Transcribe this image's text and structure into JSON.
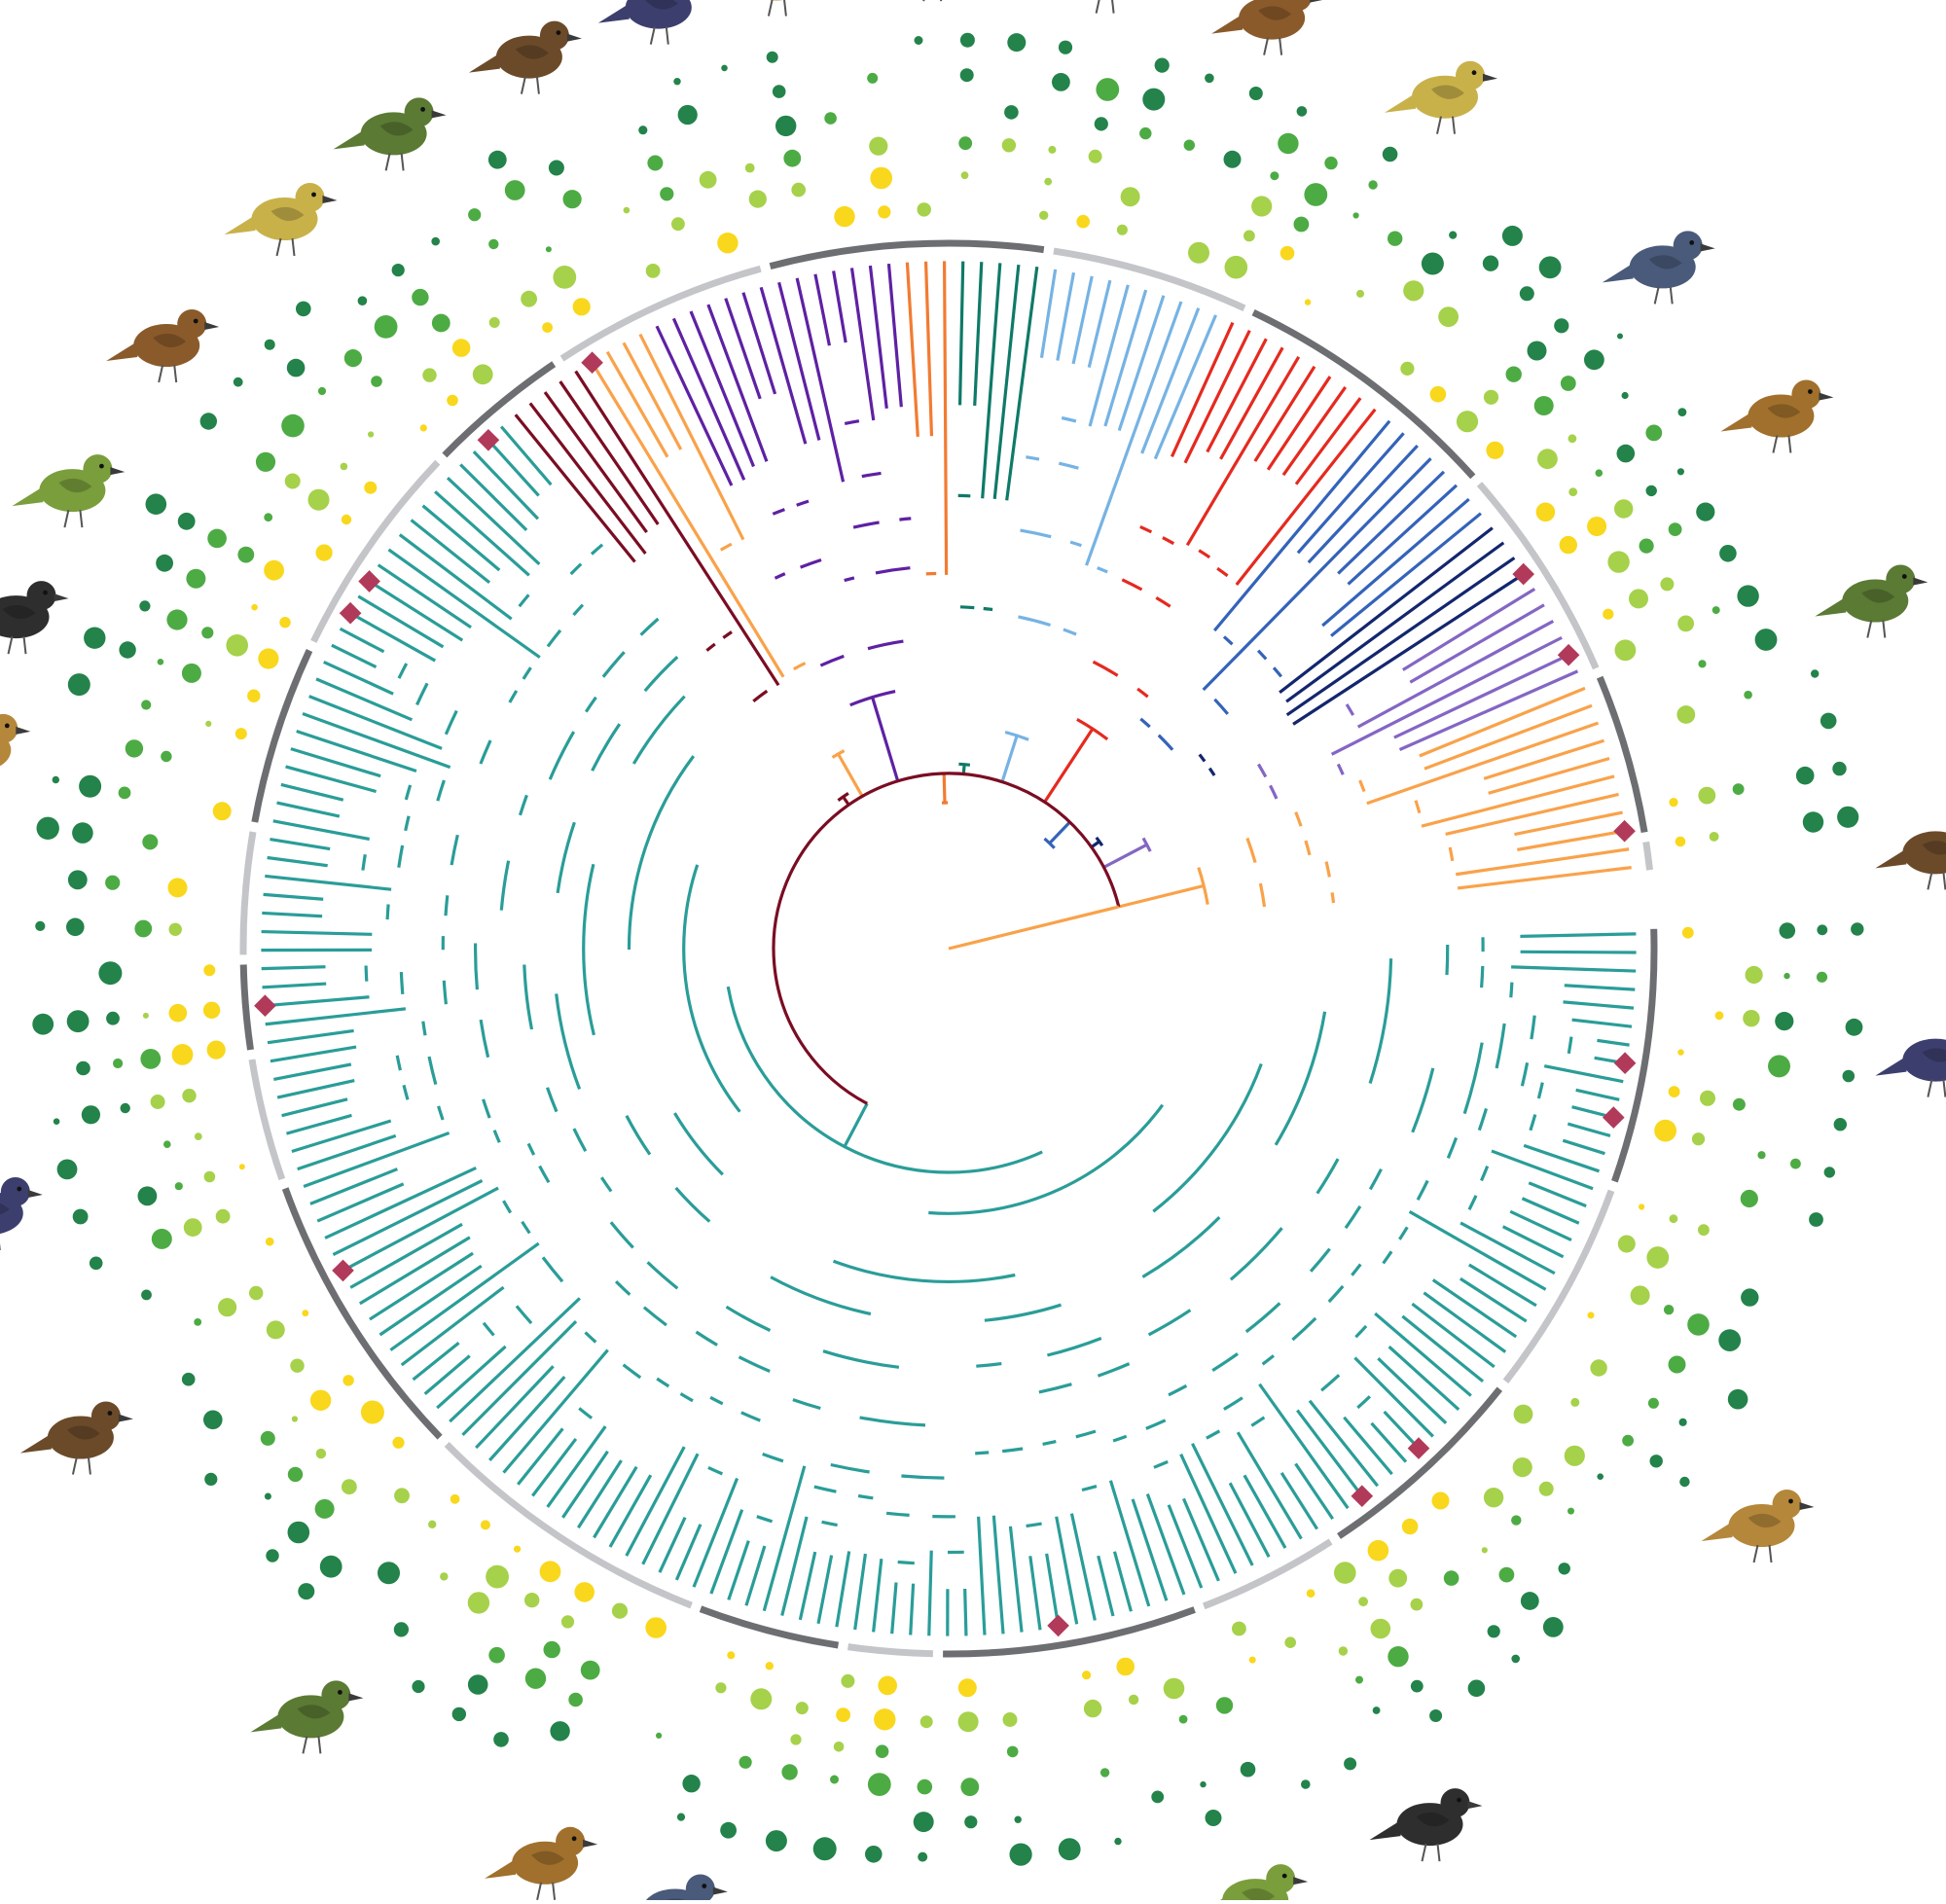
{
  "diagram": {
    "type": "circular-phylogeny",
    "tip_count": 230,
    "rotation_start_deg": -2,
    "sweep_deg": 356,
    "clades": [
      {
        "name": "passerine-core",
        "color": "#2a9d98",
        "tips": 150
      },
      {
        "name": "clade-maroon-a",
        "color": "#7a0d23",
        "tips": 5
      },
      {
        "name": "clade-orange-light",
        "color": "#f9a24a",
        "tips": 4
      },
      {
        "name": "clade-purple",
        "color": "#5e21a3",
        "tips": 14
      },
      {
        "name": "clade-orange",
        "color": "#f27b32",
        "tips": 3
      },
      {
        "name": "clade-darkgreen",
        "color": "#0f7a68",
        "tips": 5
      },
      {
        "name": "clade-lightblue",
        "color": "#76b3e3",
        "tips": 10
      },
      {
        "name": "clade-red",
        "color": "#e52a1f",
        "tips": 10
      },
      {
        "name": "clade-blue",
        "color": "#3463b9",
        "tips": 8
      },
      {
        "name": "clade-navy",
        "color": "#13266e",
        "tips": 4
      },
      {
        "name": "clade-lavender",
        "color": "#8466c4",
        "tips": 6
      },
      {
        "name": "clade-orange-basal",
        "color": "#f9a24a",
        "tips": 11
      }
    ],
    "family_band_colors": [
      "#6d6e71",
      "#c4c5c8"
    ],
    "trait_ring_colors": [
      "#f9d71c",
      "#a6d14a",
      "#4dab44",
      "#23834a"
    ],
    "marker_color": "#b13a5a",
    "marker_tips": [
      7,
      10,
      31,
      35,
      53,
      99,
      114,
      136,
      138,
      148,
      155,
      212,
      217,
      227
    ],
    "bird_illustrations": [
      {
        "name": "vireo-icon",
        "angle": 236
      },
      {
        "name": "parrot-icon",
        "angle": 245
      },
      {
        "name": "falcon-icon",
        "angle": 253
      },
      {
        "name": "woodpecker-icon",
        "angle": 260
      },
      {
        "name": "toucan-icon",
        "angle": 269
      },
      {
        "name": "jacamar-icon",
        "angle": 279
      },
      {
        "name": "trogon-icon",
        "angle": 289
      },
      {
        "name": "white-hawk-icon",
        "angle": 300
      },
      {
        "name": "hummingbird-icon",
        "angle": 316
      },
      {
        "name": "nightjar-icon",
        "angle": 327
      },
      {
        "name": "dove-icon",
        "angle": 339
      },
      {
        "name": "guan-icon",
        "angle": 354
      },
      {
        "name": "tinamou-icon",
        "angle": 6
      },
      {
        "name": "oriole-icon",
        "angle": 35
      },
      {
        "name": "foliage-gleaner-icon",
        "angle": 61
      },
      {
        "name": "manakin-icon",
        "angle": 72
      },
      {
        "name": "fruitcrow-icon",
        "angle": 82
      },
      {
        "name": "antthrush-icon",
        "angle": 96
      },
      {
        "name": "antbird-icon",
        "angle": 106
      },
      {
        "name": "antpitta-icon",
        "angle": 114
      },
      {
        "name": "antshrike-icon",
        "angle": 130
      },
      {
        "name": "flycatcher-icon",
        "angle": 151
      },
      {
        "name": "tanager-icon",
        "angle": 165
      },
      {
        "name": "grosbeak-icon",
        "angle": 192
      },
      {
        "name": "blackbird-icon",
        "angle": 200
      },
      {
        "name": "euphonia-icon",
        "angle": 208
      },
      {
        "name": "wren-icon",
        "angle": 218
      },
      {
        "name": "thrush-icon",
        "angle": 228
      }
    ]
  }
}
